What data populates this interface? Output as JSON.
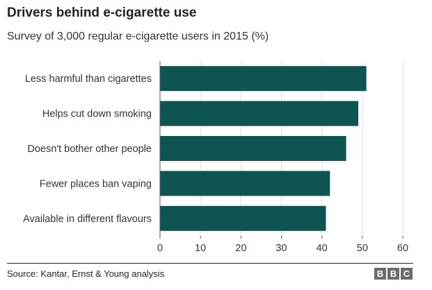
{
  "header": {
    "title": "Drivers behind e-cigarette use",
    "subtitle": "Survey of 3,000 regular e-cigarette users in 2015 (%)"
  },
  "footer": {
    "source": "Source: Kantar, Ernst & Young analysis",
    "logo_letters": [
      "B",
      "B",
      "C"
    ]
  },
  "colors": {
    "bar": "#0e5451",
    "axis": "#555555",
    "grid": "#dddddd",
    "logo": "#6b6b6b"
  },
  "chart_data": {
    "type": "bar",
    "orientation": "horizontal",
    "categories": [
      "Less harmful than cigarettes",
      "Helps cut down smoking",
      "Doesn't bother other people",
      "Fewer places ban vaping",
      "Available in different flavours"
    ],
    "values": [
      51,
      49,
      46,
      42,
      41
    ],
    "title": "Drivers behind e-cigarette use",
    "subtitle": "Survey of 3,000 regular e-cigarette users in 2015 (%)",
    "xlabel": "",
    "ylabel": "",
    "xlim": [
      0,
      60
    ],
    "ticks": [
      0,
      10,
      20,
      30,
      40,
      50,
      60
    ],
    "grid": true
  }
}
